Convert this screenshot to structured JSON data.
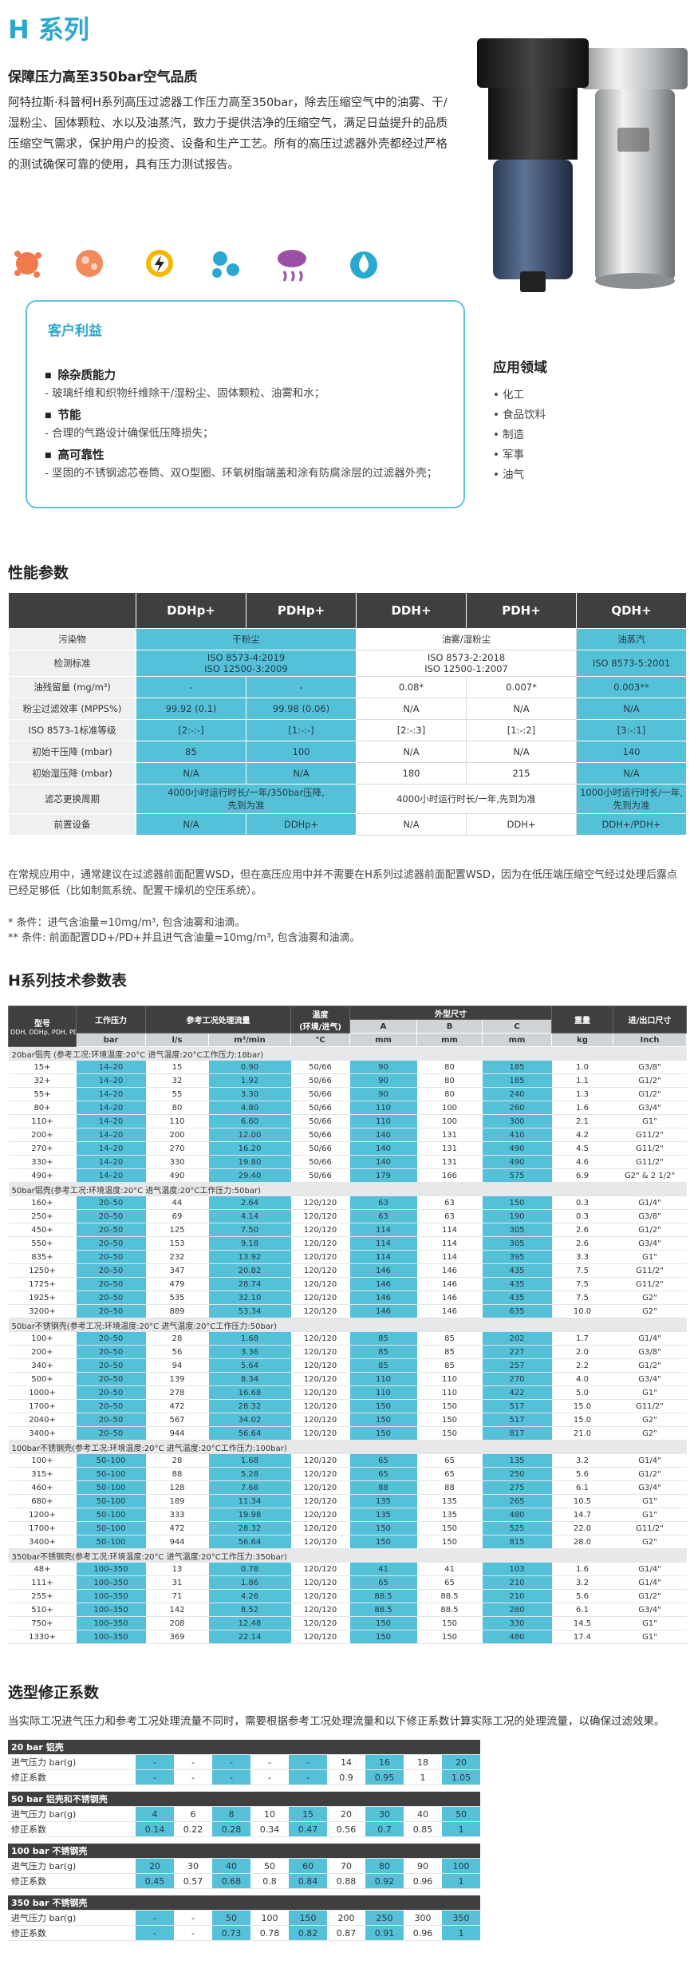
{
  "header": {
    "title": "H 系列",
    "subtitle": "保障压力高至350bar空气品质",
    "description": "阿特拉斯·科普柯H系列高压过滤器工作压力高至350bar，除去压缩空气中的油雾、干/湿粉尘、固体颗粒、水以及油蒸汽，致力于提供洁净的压缩空气，满足日益提升的品质压缩空气需求，保护用户的投资、设备和生产工艺。所有的高压过滤器外壳都经过严格的测试确保可靠的使用，具有压力测试报告。"
  },
  "benefits": {
    "title": "客户利益",
    "items": [
      {
        "title": "除杂质能力",
        "text": "玻璃纤维和织物纤维除干/湿粉尘、固体颗粒、油雾和水；"
      },
      {
        "title": "节能",
        "text": "合理的气路设计确保低压降损失；"
      },
      {
        "title": "高可靠性",
        "text": "坚固的不锈钢滤芯卷筒、双O型圈、环氧树脂端盖和涂有防腐涂层的过滤器外壳；"
      }
    ]
  },
  "applications": {
    "title": "应用领域",
    "items": [
      "化工",
      "食品饮料",
      "制造",
      "军事",
      "油气"
    ]
  },
  "performance": {
    "title": "性能参数",
    "columns": [
      "DDHp+",
      "PDHp+",
      "DDH+",
      "PDH+",
      "QDH+"
    ],
    "rows": [
      {
        "label": "污染物",
        "cells": [
          "干粉尘",
          null,
          "油雾/湿粉尘",
          null,
          "油蒸汽"
        ]
      },
      {
        "label": "检测标准",
        "cells": [
          "ISO 8573-4:2019\nISO 12500-3:2009",
          null,
          "ISO 8573-2:2018\nISO 12500-1:2007",
          null,
          "ISO 8573-5:2001"
        ]
      },
      {
        "label": "油残留量 (mg/m³)",
        "cells": [
          "-",
          "-",
          "0.08*",
          "0.007*",
          "0.003**"
        ]
      },
      {
        "label": "粉尘过滤效率 (MPPS%)",
        "cells": [
          "99.92 (0.1)",
          "99.98 (0.06)",
          "N/A",
          "N/A",
          "N/A"
        ]
      },
      {
        "label": "ISO 8573-1标准等级",
        "cells": [
          "[2:-:-]",
          "[1:-:-]",
          "[2:-:3]",
          "[1:-:2]",
          "[3:-:1]"
        ]
      },
      {
        "label": "初始干压降 (mbar)",
        "cells": [
          "85",
          "100",
          "N/A",
          "N/A",
          "140"
        ]
      },
      {
        "label": "初始湿压降 (mbar)",
        "cells": [
          "N/A",
          "N/A",
          "180",
          "215",
          "N/A"
        ]
      },
      {
        "label": "滤芯更换周期",
        "cells": [
          "4000小时运行时长/一年/350bar压降,\n先到为准",
          null,
          "4000小时运行时长/一年,先到为准",
          null,
          "1000小时运行时长/一年,\n先到为准"
        ]
      },
      {
        "label": "前置设备",
        "cells": [
          "N/A",
          "DDHp+",
          "N/A",
          "DDH+",
          "DDH+/PDH+"
        ]
      }
    ],
    "note": "在常规应用中，通常建议在过滤器前面配置WSD，但在高压应用中并不需要在H系列过滤器前面配置WSD，因为在低压端压缩空气经过处理后露点已经足够低（比如制氮系统、配置干燥机的空压系统）。",
    "footnotes": [
      "* 条件：进气含油量=10mg/m³, 包含油雾和油滴。",
      "** 条件: 前面配置DD+/PD+并且进气含油量=10mg/m³, 包含油雾和油滴。"
    ]
  },
  "spec": {
    "title": "H系列技术参数表",
    "header": {
      "model": "型号",
      "model_note": "DDH, DDHp, PDH, PDHp, QDH",
      "pressure": "工作压力",
      "flow": "参考工况处理流量",
      "temperature": "温度",
      "temperature_note": "(环境/进气)",
      "dimensions": "外型尺寸",
      "dims": [
        "A",
        "B",
        "C"
      ],
      "weight": "重量",
      "port": "进/出口尺寸",
      "units": [
        "bar",
        "l/s",
        "m³/min",
        "°C",
        "mm",
        "mm",
        "mm",
        "kg",
        "Inch"
      ]
    },
    "groups": [
      {
        "title": "20bar铝壳 (参考工况:环境温度:20°C 进气温度:20°C工作压力:18bar)",
        "rows": [
          [
            "15+",
            "14–20",
            "15",
            "0.90",
            "50/66",
            "90",
            "80",
            "185",
            "1.0",
            "G3/8\""
          ],
          [
            "32+",
            "14–20",
            "32",
            "1.92",
            "50/66",
            "90",
            "80",
            "185",
            "1.1",
            "G1/2\""
          ],
          [
            "55+",
            "14–20",
            "55",
            "3.30",
            "50/66",
            "90",
            "80",
            "240",
            "1.3",
            "G1/2\""
          ],
          [
            "80+",
            "14–20",
            "80",
            "4.80",
            "50/66",
            "110",
            "100",
            "260",
            "1.6",
            "G3/4\""
          ],
          [
            "110+",
            "14–20",
            "110",
            "6.60",
            "50/66",
            "110",
            "100",
            "300",
            "2.1",
            "G1\""
          ],
          [
            "200+",
            "14–20",
            "200",
            "12.00",
            "50/66",
            "140",
            "131",
            "410",
            "4.2",
            "G11/2\""
          ],
          [
            "270+",
            "14–20",
            "270",
            "16.20",
            "50/66",
            "140",
            "131",
            "490",
            "4.5",
            "G11/2\""
          ],
          [
            "330+",
            "14–20",
            "330",
            "19.80",
            "50/66",
            "140",
            "131",
            "490",
            "4.6",
            "G11/2\""
          ],
          [
            "490+",
            "14–20",
            "490",
            "29.40",
            "50/66",
            "179",
            "166",
            "575",
            "6.9",
            "G2\" & 2 1/2\""
          ]
        ]
      },
      {
        "title": "50bar铝壳(参考工况:环境温度:20°C 进气温度:20°C工作压力:50bar)",
        "rows": [
          [
            "160+",
            "20–50",
            "44",
            "2.64",
            "120/120",
            "63",
            "63",
            "150",
            "0.3",
            "G1/4\""
          ],
          [
            "250+",
            "20–50",
            "69",
            "4.14",
            "120/120",
            "63",
            "63",
            "190",
            "0.3",
            "G3/8\""
          ],
          [
            "450+",
            "20–50",
            "125",
            "7.50",
            "120/120",
            "114",
            "114",
            "305",
            "2.6",
            "G1/2\""
          ],
          [
            "550+",
            "20–50",
            "153",
            "9.18",
            "120/120",
            "114",
            "114",
            "305",
            "2.6",
            "G3/4\""
          ],
          [
            "835+",
            "20–50",
            "232",
            "13.92",
            "120/120",
            "114",
            "114",
            "395",
            "3.3",
            "G1\""
          ],
          [
            "1250+",
            "20–50",
            "347",
            "20.82",
            "120/120",
            "146",
            "146",
            "435",
            "7.5",
            "G11/2\""
          ],
          [
            "1725+",
            "20–50",
            "479",
            "28.74",
            "120/120",
            "146",
            "146",
            "435",
            "7.5",
            "G11/2\""
          ],
          [
            "1925+",
            "20–50",
            "535",
            "32.10",
            "120/120",
            "146",
            "146",
            "435",
            "7.5",
            "G2\""
          ],
          [
            "3200+",
            "20–50",
            "889",
            "53.34",
            "120/120",
            "146",
            "146",
            "635",
            "10.0",
            "G2\""
          ]
        ]
      },
      {
        "title": "50bar不锈钢壳(参考工况:环境温度:20°C 进气温度:20°C工作压力:50bar)",
        "rows": [
          [
            "100+",
            "20–50",
            "28",
            "1.68",
            "120/120",
            "85",
            "85",
            "202",
            "1.7",
            "G1/4\""
          ],
          [
            "200+",
            "20–50",
            "56",
            "3.36",
            "120/120",
            "85",
            "85",
            "227",
            "2.0",
            "G3/8\""
          ],
          [
            "340+",
            "20–50",
            "94",
            "5.64",
            "120/120",
            "85",
            "85",
            "257",
            "2.2",
            "G1/2\""
          ],
          [
            "500+",
            "20–50",
            "139",
            "8.34",
            "120/120",
            "110",
            "110",
            "270",
            "4.0",
            "G3/4\""
          ],
          [
            "1000+",
            "20–50",
            "278",
            "16.68",
            "120/120",
            "110",
            "110",
            "422",
            "5.0",
            "G1\""
          ],
          [
            "1700+",
            "20–50",
            "472",
            "28.32",
            "120/120",
            "150",
            "150",
            "517",
            "15.0",
            "G11/2\""
          ],
          [
            "2040+",
            "20–50",
            "567",
            "34.02",
            "120/120",
            "150",
            "150",
            "517",
            "15.0",
            "G2\""
          ],
          [
            "3400+",
            "20–50",
            "944",
            "56.64",
            "120/120",
            "150",
            "150",
            "817",
            "21.0",
            "G2\""
          ]
        ]
      },
      {
        "title": "100bar不锈钢壳(参考工况:环境温度:20°C 进气温度:20°C工作压力:100bar)",
        "rows": [
          [
            "100+",
            "50–100",
            "28",
            "1.68",
            "120/120",
            "65",
            "65",
            "135",
            "3.2",
            "G1/4\""
          ],
          [
            "315+",
            "50–100",
            "88",
            "5.28",
            "120/120",
            "65",
            "65",
            "250",
            "5.6",
            "G1/2\""
          ],
          [
            "460+",
            "50–100",
            "128",
            "7.68",
            "120/120",
            "88",
            "88",
            "275",
            "6.1",
            "G3/4\""
          ],
          [
            "680+",
            "50–100",
            "189",
            "11.34",
            "120/120",
            "135",
            "135",
            "265",
            "10.5",
            "G1\""
          ],
          [
            "1200+",
            "50–100",
            "333",
            "19.98",
            "120/120",
            "135",
            "135",
            "480",
            "14.7",
            "G1\""
          ],
          [
            "1700+",
            "50–100",
            "472",
            "28.32",
            "120/120",
            "150",
            "150",
            "525",
            "22.0",
            "G11/2\""
          ],
          [
            "3400+",
            "50–100",
            "944",
            "56.64",
            "120/120",
            "150",
            "150",
            "815",
            "28.0",
            "G2\""
          ]
        ]
      },
      {
        "title": "350bar不锈钢壳(参考工况:环境温度:20°C 进气温度:20°C工作压力:350bar)",
        "rows": [
          [
            "48+",
            "100–350",
            "13",
            "0.78",
            "120/120",
            "41",
            "41",
            "103",
            "1.6",
            "G1/4\""
          ],
          [
            "111+",
            "100–350",
            "31",
            "1.86",
            "120/120",
            "65",
            "65",
            "210",
            "3.2",
            "G1/4\""
          ],
          [
            "255+",
            "100–350",
            "71",
            "4.26",
            "120/120",
            "88.5",
            "88.5",
            "210",
            "5.6",
            "G1/2\""
          ],
          [
            "510+",
            "100–350",
            "142",
            "8.52",
            "120/120",
            "88.5",
            "88.5",
            "280",
            "6.1",
            "G3/4\""
          ],
          [
            "750+",
            "100–350",
            "208",
            "12.48",
            "120/120",
            "150",
            "150",
            "330",
            "14.5",
            "G1\""
          ],
          [
            "1330+",
            "100–350",
            "369",
            "22.14",
            "120/120",
            "150",
            "150",
            "480",
            "17.4",
            "G1\""
          ]
        ]
      }
    ]
  },
  "correction": {
    "title": "选型修正系数",
    "description": "当实际工况进气压力和参考工况处理流量不同时，需要根据参考工况处理流量和以下修正系数计算实际工况的处理流量，以确保过滤效果。",
    "tables": [
      {
        "title": "20 bar 铝壳",
        "rows": [
          {
            "label": "进气压力 bar(g)",
            "values": [
              "-",
              "-",
              "-",
              "-",
              "-",
              "14",
              "16",
              "18",
              "20"
            ]
          },
          {
            "label": "修正系数",
            "values": [
              "-",
              "-",
              "-",
              "-",
              "-",
              "0.9",
              "0.95",
              "1",
              "1.05"
            ]
          }
        ]
      },
      {
        "title": "50 bar 铝壳和不锈钢壳",
        "rows": [
          {
            "label": "进气压力 bar(g)",
            "values": [
              "4",
              "6",
              "8",
              "10",
              "15",
              "20",
              "30",
              "40",
              "50"
            ]
          },
          {
            "label": "修正系数",
            "values": [
              "0.14",
              "0.22",
              "0.28",
              "0.34",
              "0.47",
              "0.56",
              "0.7",
              "0.85",
              "1"
            ]
          }
        ]
      },
      {
        "title": "100 bar 不锈钢壳",
        "rows": [
          {
            "label": "进气压力 bar(g)",
            "values": [
              "20",
              "30",
              "40",
              "50",
              "60",
              "70",
              "80",
              "90",
              "100"
            ]
          },
          {
            "label": "修正系数",
            "values": [
              "0.45",
              "0.57",
              "0.68",
              "0.8",
              "0.84",
              "0.88",
              "0.92",
              "0.96",
              "1"
            ]
          }
        ]
      },
      {
        "title": "350 bar 不锈钢壳",
        "rows": [
          {
            "label": "进气压力 bar(g)",
            "values": [
              "-",
              "-",
              "50",
              "100",
              "150",
              "200",
              "250",
              "300",
              "350"
            ]
          },
          {
            "label": "修正系数",
            "values": [
              "-",
              "-",
              "0.73",
              "0.78",
              "0.82",
              "0.87",
              "0.91",
              "0.96",
              "1"
            ]
          }
        ]
      }
    ]
  }
}
